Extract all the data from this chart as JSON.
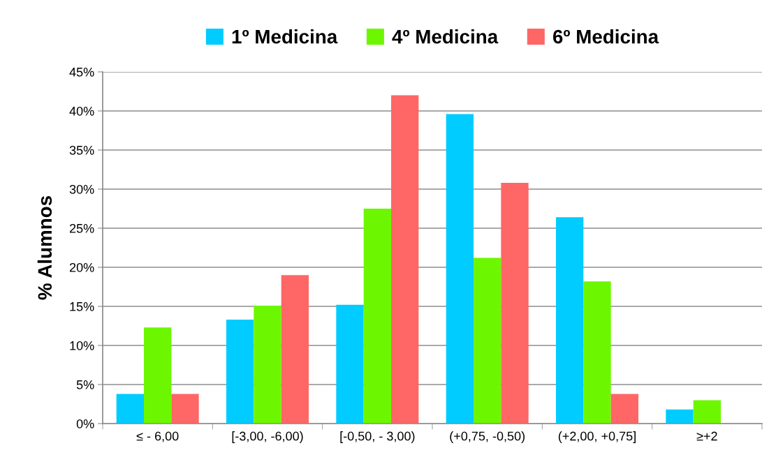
{
  "chart_data": {
    "type": "bar",
    "ylabel": "% Alumnos",
    "categories": [
      "≤ - 6,00",
      "[-3,00, -6,00)",
      "[-0,50, - 3,00)",
      "(+0,75, -0,50)",
      "(+2,00, +0,75]",
      "≥+2"
    ],
    "series": [
      {
        "name": "1º Medicina",
        "color": "#00ccff",
        "values": [
          3.8,
          13.3,
          15.2,
          39.6,
          26.4,
          1.8
        ]
      },
      {
        "name": "4º Medicina",
        "color": "#6cf700",
        "values": [
          12.3,
          15.1,
          27.5,
          21.2,
          18.2,
          3.0
        ]
      },
      {
        "name": "6º Medicina",
        "color": "#ff6666",
        "values": [
          3.8,
          19.0,
          42.0,
          30.8,
          3.8,
          null
        ]
      }
    ],
    "ylim": [
      0,
      45
    ],
    "yticks": [
      {
        "value": 0,
        "label": "0%"
      },
      {
        "value": 5,
        "label": "5%"
      },
      {
        "value": 10,
        "label": "10%"
      },
      {
        "value": 15,
        "label": "15%"
      },
      {
        "value": 20,
        "label": "20%"
      },
      {
        "value": 25,
        "label": "25%"
      },
      {
        "value": 30,
        "label": "30%"
      },
      {
        "value": 35,
        "label": "35%"
      },
      {
        "value": 40,
        "label": "40%"
      },
      {
        "value": 45,
        "label": "45%"
      }
    ],
    "grid": "y",
    "legend": "top"
  }
}
